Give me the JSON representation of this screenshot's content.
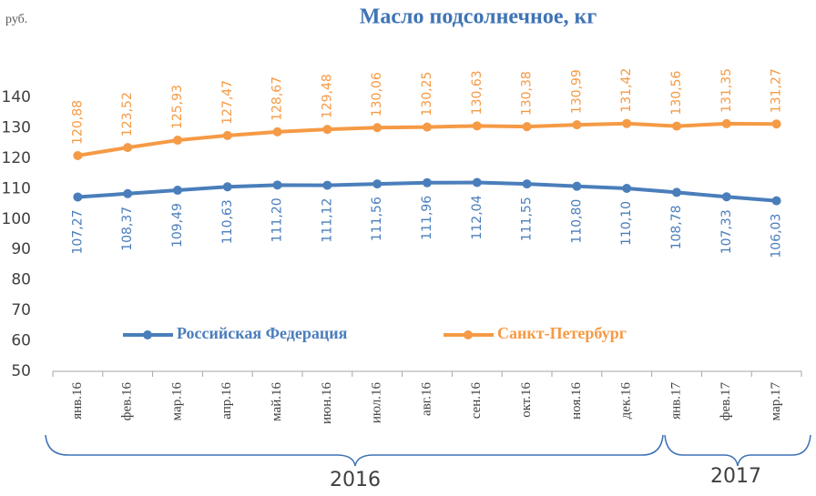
{
  "chart_data": {
    "type": "line",
    "title": "Масло подсолнечное, кг",
    "y_unit": "руб.",
    "categories": [
      "янв.16",
      "фев.16",
      "мар.16",
      "апр.16",
      "май.16",
      "июн.16",
      "июл.16",
      "авг.16",
      "сен.16",
      "окт.16",
      "ноя.16",
      "дек.16",
      "янв.17",
      "фев.17",
      "мар.17"
    ],
    "x_groups": [
      "2016",
      "2017"
    ],
    "series": [
      {
        "name": "Российская Федерация",
        "color": "#4a7ebb",
        "values": [
          107.27,
          108.37,
          109.49,
          110.63,
          111.2,
          111.12,
          111.56,
          111.96,
          112.04,
          111.55,
          110.8,
          110.1,
          108.78,
          107.33,
          106.03
        ],
        "value_labels": [
          "107,27",
          "108,37",
          "109,49",
          "110,63",
          "111,20",
          "111,12",
          "111,56",
          "111,96",
          "112,04",
          "111,55",
          "110,80",
          "110,10",
          "108,78",
          "107,33",
          "106,03"
        ]
      },
      {
        "name": "Санкт-Петербург",
        "color": "#f59a45",
        "values": [
          120.88,
          123.52,
          125.93,
          127.47,
          128.67,
          129.48,
          130.06,
          130.25,
          130.63,
          130.38,
          130.99,
          131.42,
          130.56,
          131.35,
          131.27
        ],
        "value_labels": [
          "120,88",
          "123,52",
          "125,93",
          "127,47",
          "128,67",
          "129,48",
          "130,06",
          "130,25",
          "130,63",
          "130,38",
          "130,99",
          "131,42",
          "130,56",
          "131,35",
          "131,27"
        ]
      }
    ],
    "ylim": [
      50,
      140
    ],
    "yticks": [
      50,
      60,
      70,
      80,
      90,
      100,
      110,
      120,
      130,
      140
    ],
    "grid": false,
    "legend": "inside-bottom"
  }
}
